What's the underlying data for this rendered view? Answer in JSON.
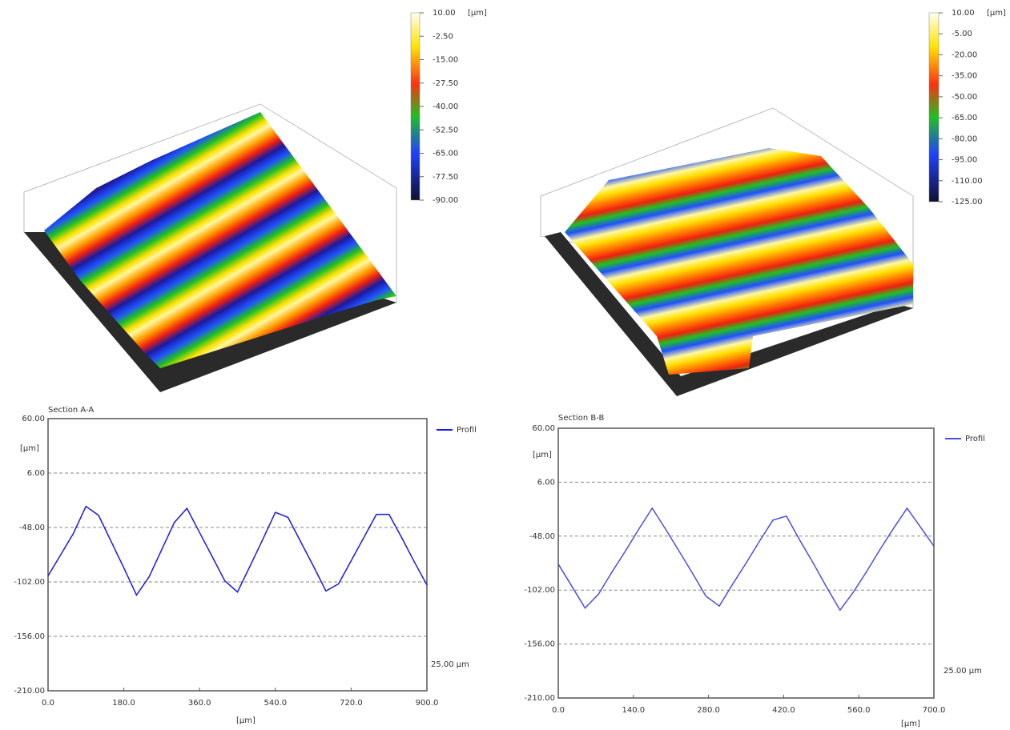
{
  "chart_data": [
    {
      "type": "surface",
      "colorbar_unit": "[µm]",
      "clim": [
        -90,
        10
      ],
      "colorbar_ticks": [
        {
          "value": 10,
          "label": "10.00"
        },
        {
          "value": -2.5,
          "label": "-2.50"
        },
        {
          "value": -15,
          "label": "-15.00"
        },
        {
          "value": -27.5,
          "label": "-27.50"
        },
        {
          "value": -40,
          "label": "-40.00"
        },
        {
          "value": -52.5,
          "label": "-52.50"
        },
        {
          "value": -65,
          "label": "-65.00"
        },
        {
          "value": -77.5,
          "label": "-77.50"
        },
        {
          "value": -90,
          "label": "-90.00"
        }
      ]
    },
    {
      "type": "surface",
      "colorbar_unit": "[µm]",
      "clim": [
        -125,
        10
      ],
      "colorbar_ticks": [
        {
          "value": 10,
          "label": "10.00"
        },
        {
          "value": -5,
          "label": "-5.00"
        },
        {
          "value": -20,
          "label": "-20.00"
        },
        {
          "value": -35,
          "label": "-35.00"
        },
        {
          "value": -50,
          "label": "-50.00"
        },
        {
          "value": -65,
          "label": "-65.00"
        },
        {
          "value": -80,
          "label": "-80.00"
        },
        {
          "value": -95,
          "label": "-95.00"
        },
        {
          "value": -110,
          "label": "-110.00"
        },
        {
          "value": -125,
          "label": "-125.00"
        }
      ]
    },
    {
      "type": "line",
      "title": "Section A-A",
      "y_label": "[µm]",
      "x_label": "[µm]",
      "annotation": "25.00 µm",
      "grid": true,
      "x": [
        0,
        30,
        60,
        90,
        120,
        150,
        180,
        210,
        240,
        270,
        300,
        330,
        360,
        390,
        420,
        450,
        480,
        510,
        540,
        570,
        600,
        630,
        660,
        690,
        720,
        750,
        780,
        810,
        840,
        870,
        900
      ],
      "series": [
        {
          "name": "Profil",
          "color": "#1a1ae6",
          "values": [
            -96,
            -75,
            -54,
            -27,
            -36,
            -62,
            -88,
            -115,
            -97,
            -70,
            -43,
            -29,
            -53,
            -77,
            -101,
            -112,
            -86,
            -60,
            -33,
            -38,
            -62,
            -86,
            -111,
            -104,
            -81,
            -58,
            -35,
            -35,
            -58,
            -82,
            -105
          ]
        }
      ],
      "xlim": [
        0,
        900
      ],
      "ylim": [
        -210,
        60
      ],
      "xticks": [
        {
          "value": 0,
          "label": "0.0"
        },
        {
          "value": 180,
          "label": "180.0"
        },
        {
          "value": 360,
          "label": "360.0"
        },
        {
          "value": 540,
          "label": "540.0"
        },
        {
          "value": 720,
          "label": "720.0"
        },
        {
          "value": 900,
          "label": "900.0"
        }
      ],
      "yticks": [
        {
          "value": 60,
          "label": "60.00"
        },
        {
          "value": 6,
          "label": "6.00"
        },
        {
          "value": -48,
          "label": "-48.00"
        },
        {
          "value": -102,
          "label": "-102.00"
        },
        {
          "value": -156,
          "label": "-156.00"
        },
        {
          "value": -210,
          "label": "-210.00"
        }
      ]
    },
    {
      "type": "line",
      "title": "Section B-B",
      "y_label": "[µm]",
      "x_label": "[µm]",
      "annotation": "25.00 µm",
      "grid": true,
      "x": [
        0,
        25,
        50,
        75,
        100,
        125,
        150,
        175,
        200,
        225,
        250,
        275,
        300,
        325,
        350,
        375,
        400,
        425,
        450,
        475,
        500,
        525,
        550,
        575,
        600,
        625,
        650,
        675,
        700
      ],
      "series": [
        {
          "name": "Profil",
          "color": "#4d4de6",
          "values": [
            -76,
            -98,
            -120,
            -106,
            -84,
            -63,
            -41,
            -20,
            -41,
            -63,
            -85,
            -108,
            -118,
            -96,
            -75,
            -53,
            -32,
            -28,
            -52,
            -75,
            -99,
            -122,
            -104,
            -83,
            -61,
            -40,
            -20,
            -39,
            -58
          ]
        }
      ],
      "xlim": [
        0,
        700
      ],
      "ylim": [
        -210,
        60
      ],
      "xticks": [
        {
          "value": 0,
          "label": "0.0"
        },
        {
          "value": 140,
          "label": "140.0"
        },
        {
          "value": 280,
          "label": "280.0"
        },
        {
          "value": 420,
          "label": "420.0"
        },
        {
          "value": 560,
          "label": "560.0"
        },
        {
          "value": 700,
          "label": "700.0"
        }
      ],
      "yticks": [
        {
          "value": 60,
          "label": "60.00"
        },
        {
          "value": 6,
          "label": "6.00"
        },
        {
          "value": -48,
          "label": "-48.00"
        },
        {
          "value": -102,
          "label": "-102.00"
        },
        {
          "value": -156,
          "label": "-156.00"
        },
        {
          "value": -210,
          "label": "-210.00"
        }
      ]
    }
  ]
}
